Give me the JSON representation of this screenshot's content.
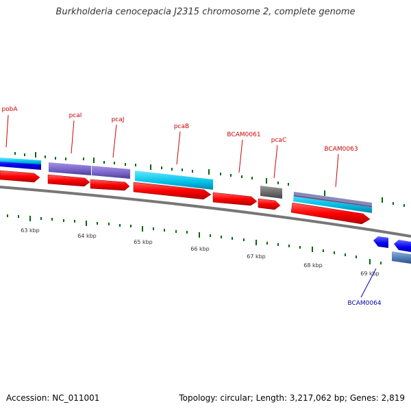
{
  "title": "Burkholderia cenocepacia J2315 chromosome 2, complete genome",
  "footer": {
    "accession": "Accession: NC_011001",
    "summary": "Topology: circular; Length: 3,217,062 bp; Genes: 2,819"
  },
  "colors": {
    "cds": "#ff0000",
    "gene_label": "#cc0000",
    "gene_label_blue": "#0000aa",
    "cyan_feature": "#00c8e8",
    "purple_feature": "#7b68c8",
    "gray_feature": "#666666",
    "blue_feature": "#0000ff",
    "backbone": "#777777",
    "ticks": "#006600"
  },
  "axis_labels": [
    "63 kbp",
    "64 kbp",
    "65 kbp",
    "66 kbp",
    "67 kbp",
    "68 kbp",
    "69 kbp"
  ],
  "gene_labels": [
    "pobA",
    "pcaI",
    "pcaJ",
    "pcaB",
    "BCAM0061",
    "pcaC",
    "BCAM0063",
    "BCAM0064"
  ]
}
